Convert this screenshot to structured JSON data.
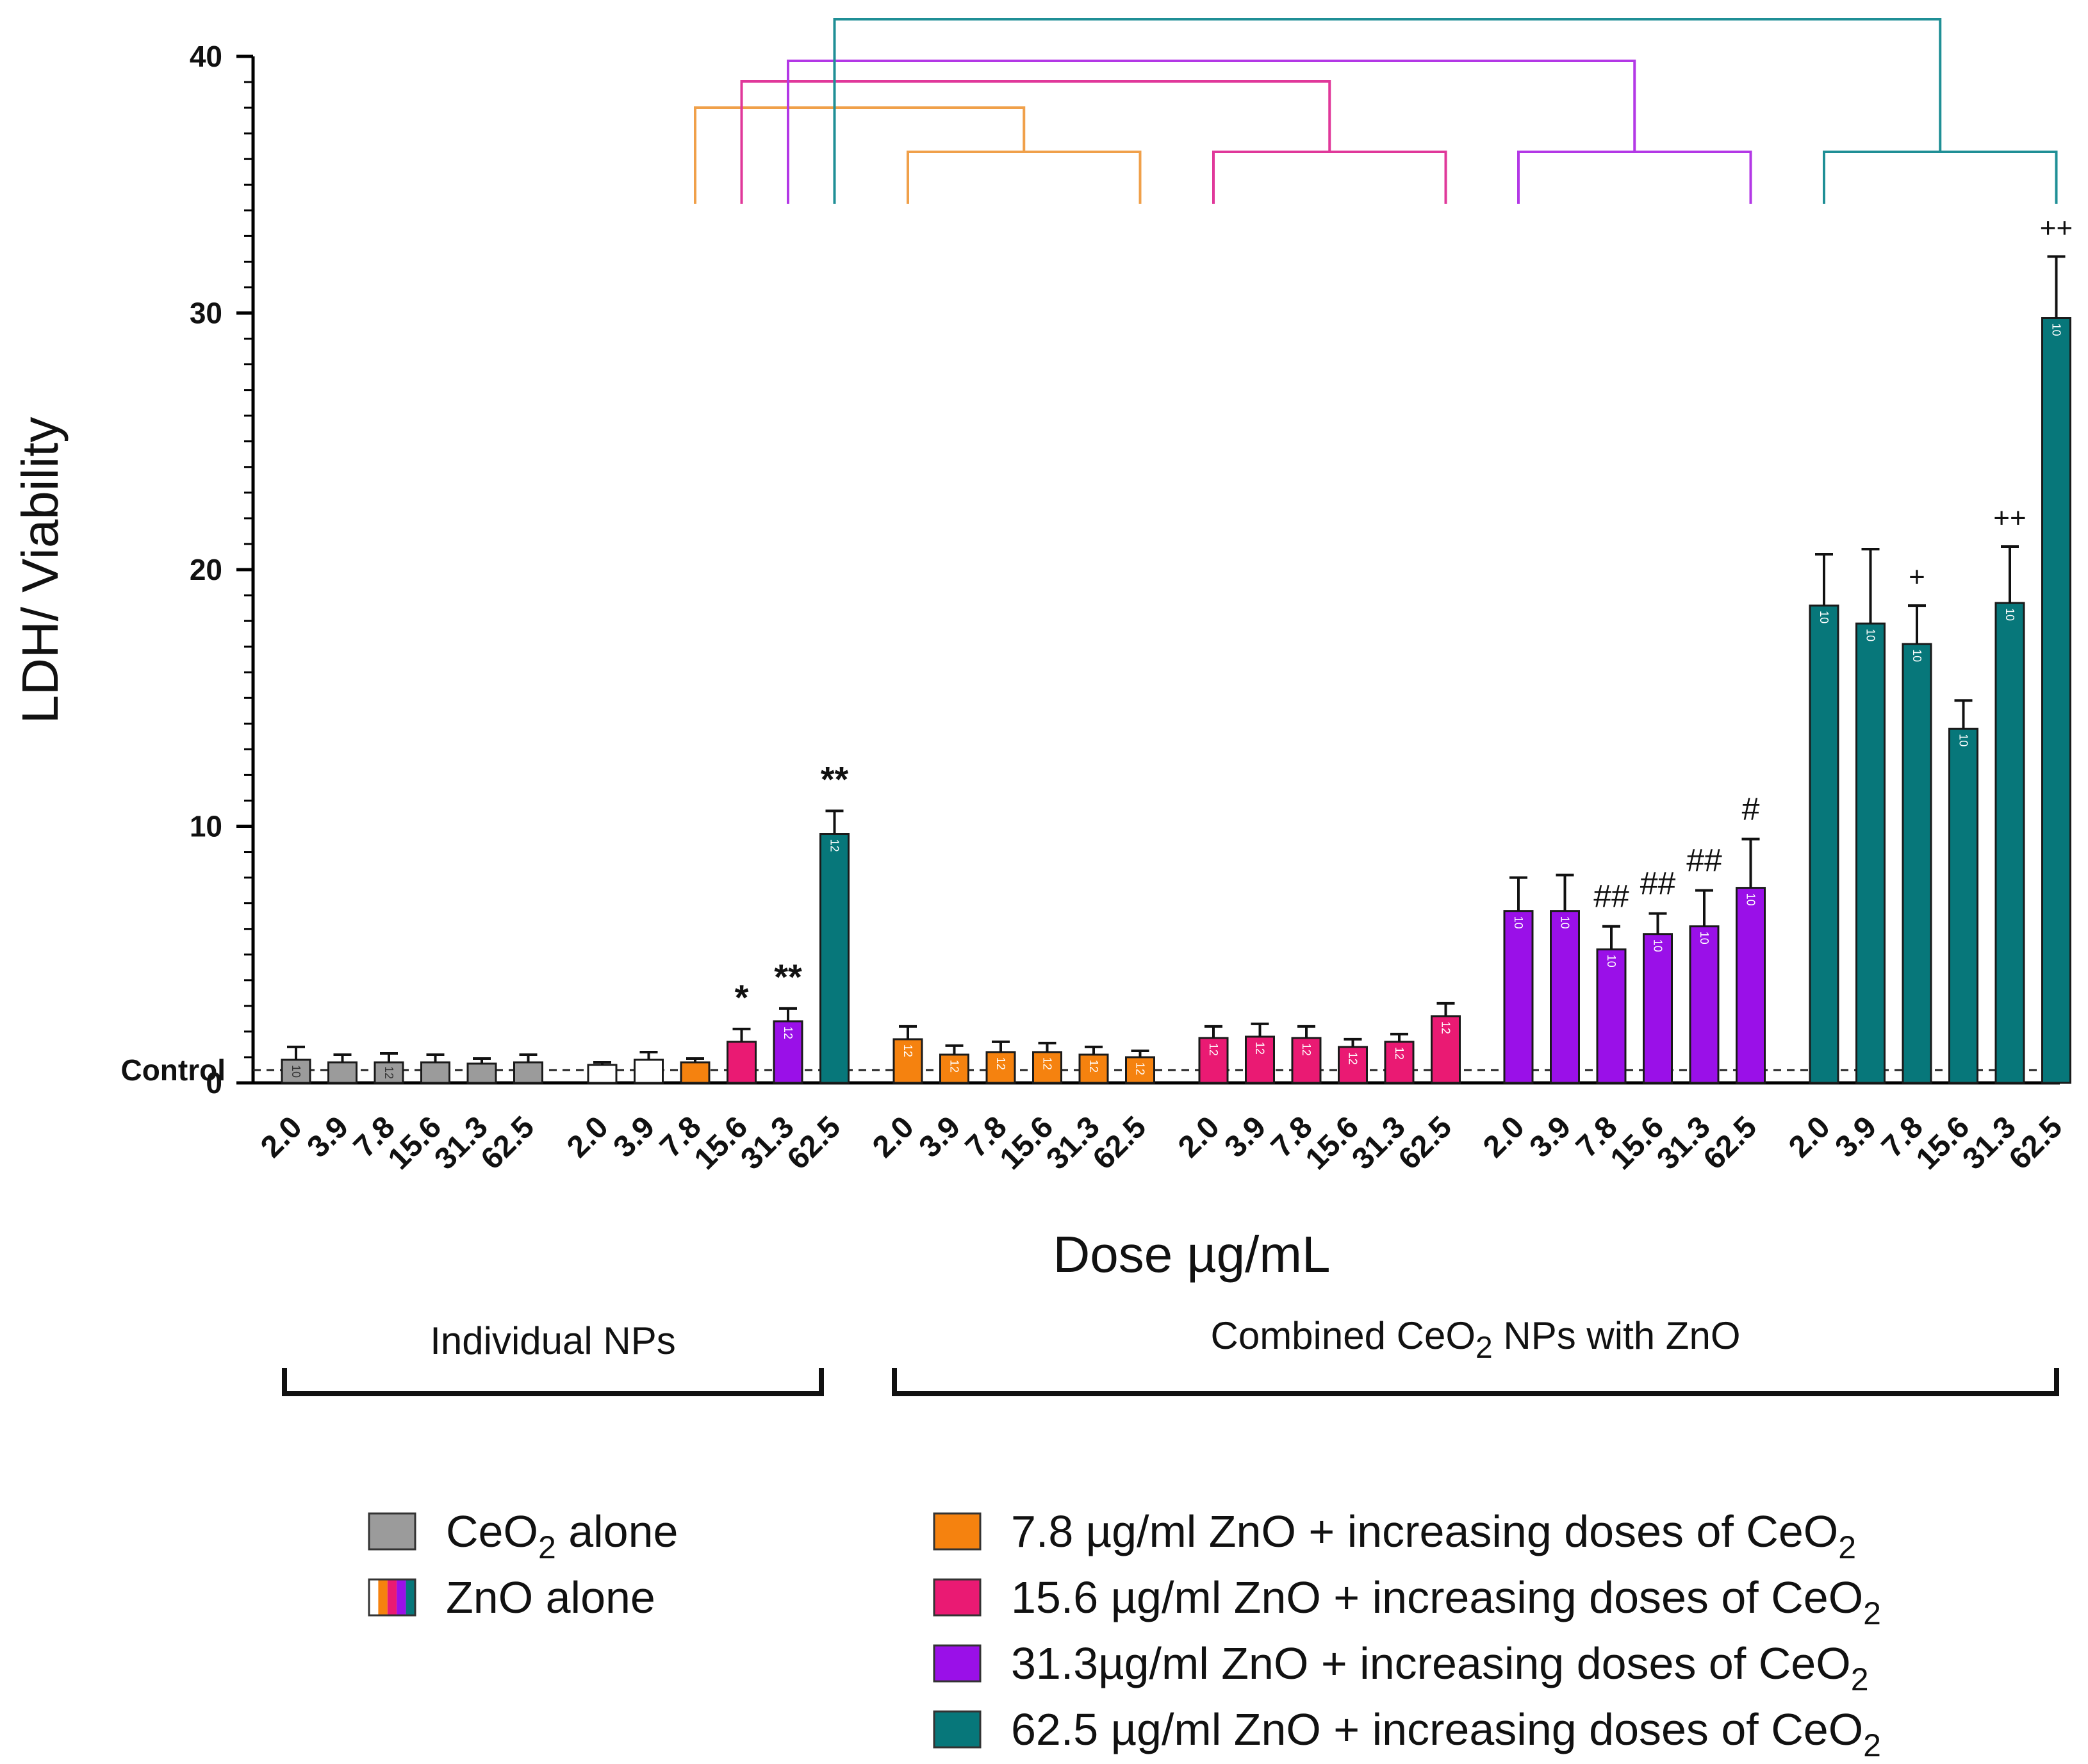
{
  "chart_data": {
    "type": "bar",
    "ylabel": "LDH/ Viability",
    "xlabel": "Dose µg/mL",
    "ylim": [
      0,
      40
    ],
    "yticks": [
      0,
      10,
      20,
      30,
      40
    ],
    "control_label": "Control",
    "control_value": 0.5,
    "doses": [
      "2.0",
      "3.9",
      "7.8",
      "15.6",
      "31.3",
      "62.5"
    ],
    "colors": {
      "gray": "#9b9b9b",
      "white": "#ffffff",
      "orange": "#f5820f",
      "pink": "#ea1a73",
      "purple": "#9a10e8",
      "teal": "#07777a"
    },
    "groups": [
      {
        "name": "CeO2 alone",
        "bars": [
          {
            "dose": "2.0",
            "value": 0.9,
            "err": 0.5,
            "color": "gray",
            "n": "10",
            "sig": ""
          },
          {
            "dose": "3.9",
            "value": 0.8,
            "err": 0.3,
            "color": "gray",
            "n": "",
            "sig": ""
          },
          {
            "dose": "7.8",
            "value": 0.8,
            "err": 0.35,
            "color": "gray",
            "n": "12",
            "sig": ""
          },
          {
            "dose": "15.6",
            "value": 0.8,
            "err": 0.3,
            "color": "gray",
            "n": "",
            "sig": ""
          },
          {
            "dose": "31.3",
            "value": 0.75,
            "err": 0.2,
            "color": "gray",
            "n": "",
            "sig": ""
          },
          {
            "dose": "62.5",
            "value": 0.8,
            "err": 0.3,
            "color": "gray",
            "n": "",
            "sig": ""
          }
        ]
      },
      {
        "name": "ZnO alone",
        "bars": [
          {
            "dose": "2.0",
            "value": 0.7,
            "err": 0.1,
            "color": "white",
            "n": "",
            "sig": ""
          },
          {
            "dose": "3.9",
            "value": 0.9,
            "err": 0.3,
            "color": "white",
            "n": "",
            "sig": ""
          },
          {
            "dose": "7.8",
            "value": 0.8,
            "err": 0.15,
            "color": "orange",
            "n": "",
            "sig": ""
          },
          {
            "dose": "15.6",
            "value": 1.6,
            "err": 0.5,
            "color": "pink",
            "n": "",
            "sig": "*"
          },
          {
            "dose": "31.3",
            "value": 2.4,
            "err": 0.5,
            "color": "purple",
            "n": "12",
            "sig": "**"
          },
          {
            "dose": "62.5",
            "value": 9.7,
            "err": 0.9,
            "color": "teal",
            "n": "12",
            "sig": "**"
          }
        ]
      },
      {
        "name": "7.8 µg/ml ZnO + increasing doses of CeO2",
        "bars": [
          {
            "dose": "2.0",
            "value": 1.7,
            "err": 0.5,
            "color": "orange",
            "n": "12",
            "sig": ""
          },
          {
            "dose": "3.9",
            "value": 1.1,
            "err": 0.35,
            "color": "orange",
            "n": "12",
            "sig": ""
          },
          {
            "dose": "7.8",
            "value": 1.2,
            "err": 0.4,
            "color": "orange",
            "n": "12",
            "sig": ""
          },
          {
            "dose": "15.6",
            "value": 1.2,
            "err": 0.35,
            "color": "orange",
            "n": "12",
            "sig": ""
          },
          {
            "dose": "31.3",
            "value": 1.1,
            "err": 0.3,
            "color": "orange",
            "n": "12",
            "sig": ""
          },
          {
            "dose": "62.5",
            "value": 1.0,
            "err": 0.25,
            "color": "orange",
            "n": "12",
            "sig": ""
          }
        ]
      },
      {
        "name": "15.6 µg/ml ZnO + increasing doses of CeO2",
        "bars": [
          {
            "dose": "2.0",
            "value": 1.75,
            "err": 0.45,
            "color": "pink",
            "n": "12",
            "sig": ""
          },
          {
            "dose": "3.9",
            "value": 1.8,
            "err": 0.5,
            "color": "pink",
            "n": "12",
            "sig": ""
          },
          {
            "dose": "7.8",
            "value": 1.75,
            "err": 0.45,
            "color": "pink",
            "n": "12",
            "sig": ""
          },
          {
            "dose": "15.6",
            "value": 1.4,
            "err": 0.3,
            "color": "pink",
            "n": "12",
            "sig": ""
          },
          {
            "dose": "31.3",
            "value": 1.6,
            "err": 0.3,
            "color": "pink",
            "n": "12",
            "sig": ""
          },
          {
            "dose": "62.5",
            "value": 2.6,
            "err": 0.5,
            "color": "pink",
            "n": "12",
            "sig": ""
          }
        ]
      },
      {
        "name": "31.3µg/ml ZnO + increasing doses of CeO2",
        "bars": [
          {
            "dose": "2.0",
            "value": 6.7,
            "err": 1.3,
            "color": "purple",
            "n": "10",
            "sig": ""
          },
          {
            "dose": "3.9",
            "value": 6.7,
            "err": 1.4,
            "color": "purple",
            "n": "10",
            "sig": ""
          },
          {
            "dose": "7.8",
            "value": 5.2,
            "err": 0.9,
            "color": "purple",
            "n": "10",
            "sig": "##"
          },
          {
            "dose": "15.6",
            "value": 5.8,
            "err": 0.8,
            "color": "purple",
            "n": "10",
            "sig": "##"
          },
          {
            "dose": "31.3",
            "value": 6.1,
            "err": 1.4,
            "color": "purple",
            "n": "10",
            "sig": "##"
          },
          {
            "dose": "62.5",
            "value": 7.6,
            "err": 1.9,
            "color": "purple",
            "n": "10",
            "sig": "#"
          }
        ]
      },
      {
        "name": "62.5 µg/ml ZnO + increasing doses of CeO2",
        "bars": [
          {
            "dose": "2.0",
            "value": 18.6,
            "err": 2.0,
            "color": "teal",
            "n": "10",
            "sig": ""
          },
          {
            "dose": "3.9",
            "value": 17.9,
            "err": 2.9,
            "color": "teal",
            "n": "10",
            "sig": ""
          },
          {
            "dose": "7.8",
            "value": 17.1,
            "err": 1.5,
            "color": "teal",
            "n": "10",
            "sig": "+"
          },
          {
            "dose": "15.6",
            "value": 13.8,
            "err": 1.1,
            "color": "teal",
            "n": "10",
            "sig": ""
          },
          {
            "dose": "31.3",
            "value": 18.7,
            "err": 2.2,
            "color": "teal",
            "n": "10",
            "sig": "++"
          },
          {
            "dose": "62.5",
            "value": 29.8,
            "err": 2.4,
            "color": "teal",
            "n": "10",
            "sig": "++"
          }
        ]
      }
    ],
    "comparison_brackets": [
      {
        "color": "orange",
        "from_bar": [
          1,
          2
        ],
        "to_group": 2
      },
      {
        "color": "pink",
        "from_bar": [
          1,
          3
        ],
        "to_group": 3
      },
      {
        "color": "purple",
        "from_bar": [
          1,
          4
        ],
        "to_group": 4
      },
      {
        "color": "teal",
        "from_bar": [
          1,
          5
        ],
        "to_group": 5
      }
    ],
    "group_headers": [
      {
        "text": "Individual NPs",
        "span": [
          0,
          1
        ]
      },
      {
        "text_parts": [
          "Combined CeO",
          "2",
          " NPs with ZnO"
        ],
        "span": [
          2,
          5
        ]
      }
    ],
    "legend": [
      {
        "label_parts": [
          "CeO",
          "2",
          " alone"
        ],
        "swatch": "gray"
      },
      {
        "label_parts": [
          "ZnO alone",
          "",
          ""
        ],
        "swatch": "multi"
      },
      {
        "label_parts": [
          "7.8 µg/ml ZnO + increasing doses of CeO",
          "2",
          ""
        ],
        "swatch": "orange"
      },
      {
        "label_parts": [
          "15.6 µg/ml ZnO + increasing doses of CeO",
          "2",
          ""
        ],
        "swatch": "pink"
      },
      {
        "label_parts": [
          "31.3µg/ml ZnO + increasing doses of CeO",
          "2",
          ""
        ],
        "swatch": "purple"
      },
      {
        "label_parts": [
          "62.5 µg/ml ZnO + increasing doses of CeO",
          "2",
          ""
        ],
        "swatch": "teal"
      }
    ]
  }
}
